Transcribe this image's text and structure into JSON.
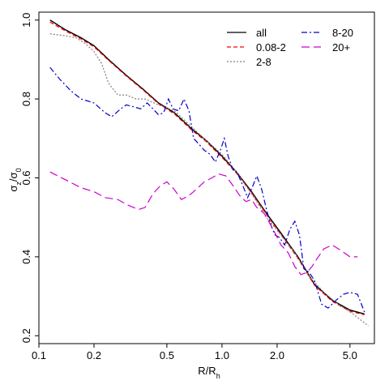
{
  "chart_data": {
    "type": "line",
    "title": "",
    "xlabel": "R/R",
    "xlabel_sub": "h",
    "ylabel": "σ",
    "ylabel_sub": "z",
    "ylabel_mid": "/σ",
    "ylabel_sub2": "0",
    "x_scale": "log",
    "xlim": [
      0.1,
      6.8
    ],
    "ylim": [
      0.18,
      1.02
    ],
    "grid": false,
    "legend_position": "top-right",
    "x_ticks": [
      {
        "value": 0.1,
        "label": "0.1"
      },
      {
        "value": 0.2,
        "label": "0.2"
      },
      {
        "value": 0.5,
        "label": "0.5"
      },
      {
        "value": 1.0,
        "label": "1.0"
      },
      {
        "value": 2.0,
        "label": "2.0"
      },
      {
        "value": 5.0,
        "label": "5.0"
      }
    ],
    "y_ticks": [
      {
        "value": 0.2,
        "label": "0.2"
      },
      {
        "value": 0.4,
        "label": "0.4"
      },
      {
        "value": 0.6,
        "label": "0.6"
      },
      {
        "value": 0.8,
        "label": "0.8"
      },
      {
        "value": 1.0,
        "label": "1.0"
      }
    ],
    "series": [
      {
        "name": "all",
        "color": "#000000",
        "dash": "solid",
        "x": [
          0.115,
          0.14,
          0.17,
          0.2,
          0.24,
          0.3,
          0.37,
          0.45,
          0.55,
          0.68,
          0.82,
          1.0,
          1.2,
          1.45,
          1.75,
          2.1,
          2.6,
          3.2,
          4.0,
          5.0,
          6.0
        ],
        "y": [
          1.0,
          0.975,
          0.955,
          0.935,
          0.9,
          0.86,
          0.825,
          0.79,
          0.765,
          0.725,
          0.695,
          0.655,
          0.615,
          0.565,
          0.51,
          0.46,
          0.4,
          0.33,
          0.29,
          0.265,
          0.255
        ]
      },
      {
        "name": "0.08-2",
        "color": "#ff0000",
        "dash": "5,3",
        "x": [
          0.115,
          0.14,
          0.17,
          0.2,
          0.24,
          0.3,
          0.37,
          0.45,
          0.55,
          0.68,
          0.82,
          1.0,
          1.2,
          1.45,
          1.75,
          2.1,
          2.6,
          3.2,
          4.0,
          5.0,
          6.0
        ],
        "y": [
          0.995,
          0.972,
          0.952,
          0.932,
          0.898,
          0.858,
          0.823,
          0.788,
          0.762,
          0.722,
          0.692,
          0.652,
          0.612,
          0.562,
          0.507,
          0.456,
          0.396,
          0.328,
          0.287,
          0.262,
          0.253
        ]
      },
      {
        "name": "2-8",
        "color": "#808080",
        "dash": "2,2",
        "x": [
          0.115,
          0.14,
          0.16,
          0.18,
          0.2,
          0.22,
          0.24,
          0.27,
          0.3,
          0.34,
          0.38,
          0.45,
          0.55,
          0.68,
          0.82,
          1.0,
          1.2,
          1.45,
          1.75,
          2.1,
          2.5,
          3.0,
          3.6,
          4.3,
          5.2,
          6.3
        ],
        "y": [
          0.965,
          0.96,
          0.955,
          0.94,
          0.92,
          0.89,
          0.84,
          0.81,
          0.81,
          0.8,
          0.8,
          0.785,
          0.77,
          0.73,
          0.695,
          0.66,
          0.615,
          0.56,
          0.5,
          0.455,
          0.41,
          0.35,
          0.31,
          0.28,
          0.255,
          0.225
        ]
      },
      {
        "name": "8-20",
        "color": "#0000cc",
        "dash": "7,3,2,3",
        "x": [
          0.115,
          0.13,
          0.15,
          0.17,
          0.2,
          0.23,
          0.25,
          0.28,
          0.3,
          0.33,
          0.36,
          0.39,
          0.42,
          0.45,
          0.48,
          0.51,
          0.54,
          0.58,
          0.62,
          0.66,
          0.7,
          0.75,
          0.8,
          0.86,
          0.92,
          0.98,
          1.03,
          1.08,
          1.15,
          1.22,
          1.3,
          1.38,
          1.46,
          1.55,
          1.65,
          1.75,
          1.85,
          1.95,
          2.05,
          2.2,
          2.35,
          2.5,
          2.65,
          2.8,
          3.0,
          3.2,
          3.5,
          3.8,
          4.2,
          4.6,
          5.0,
          5.5,
          6.0
        ],
        "y": [
          0.88,
          0.85,
          0.82,
          0.8,
          0.79,
          0.765,
          0.755,
          0.775,
          0.785,
          0.78,
          0.775,
          0.79,
          0.775,
          0.76,
          0.765,
          0.8,
          0.775,
          0.77,
          0.8,
          0.77,
          0.7,
          0.685,
          0.67,
          0.66,
          0.64,
          0.67,
          0.7,
          0.655,
          0.62,
          0.61,
          0.58,
          0.55,
          0.575,
          0.605,
          0.57,
          0.52,
          0.48,
          0.455,
          0.45,
          0.43,
          0.47,
          0.49,
          0.455,
          0.37,
          0.36,
          0.34,
          0.28,
          0.27,
          0.29,
          0.305,
          0.31,
          0.305,
          0.26
        ]
      },
      {
        "name": "20+",
        "color": "#cc00cc",
        "dash": "10,5",
        "x": [
          0.115,
          0.14,
          0.17,
          0.2,
          0.23,
          0.27,
          0.31,
          0.35,
          0.38,
          0.42,
          0.46,
          0.5,
          0.55,
          0.6,
          0.66,
          0.72,
          0.8,
          0.88,
          0.96,
          1.05,
          1.15,
          1.25,
          1.35,
          1.45,
          1.55,
          1.7,
          1.9,
          2.1,
          2.3,
          2.5,
          2.7,
          2.9,
          3.1,
          3.3,
          3.6,
          4.0,
          4.5,
          5.0,
          5.5
        ],
        "y": [
          0.615,
          0.595,
          0.575,
          0.565,
          0.55,
          0.545,
          0.53,
          0.52,
          0.525,
          0.56,
          0.58,
          0.59,
          0.57,
          0.545,
          0.555,
          0.57,
          0.59,
          0.6,
          0.61,
          0.605,
          0.58,
          0.555,
          0.54,
          0.545,
          0.525,
          0.51,
          0.47,
          0.43,
          0.41,
          0.375,
          0.355,
          0.36,
          0.375,
          0.395,
          0.42,
          0.43,
          0.415,
          0.4,
          0.4
        ]
      }
    ]
  }
}
